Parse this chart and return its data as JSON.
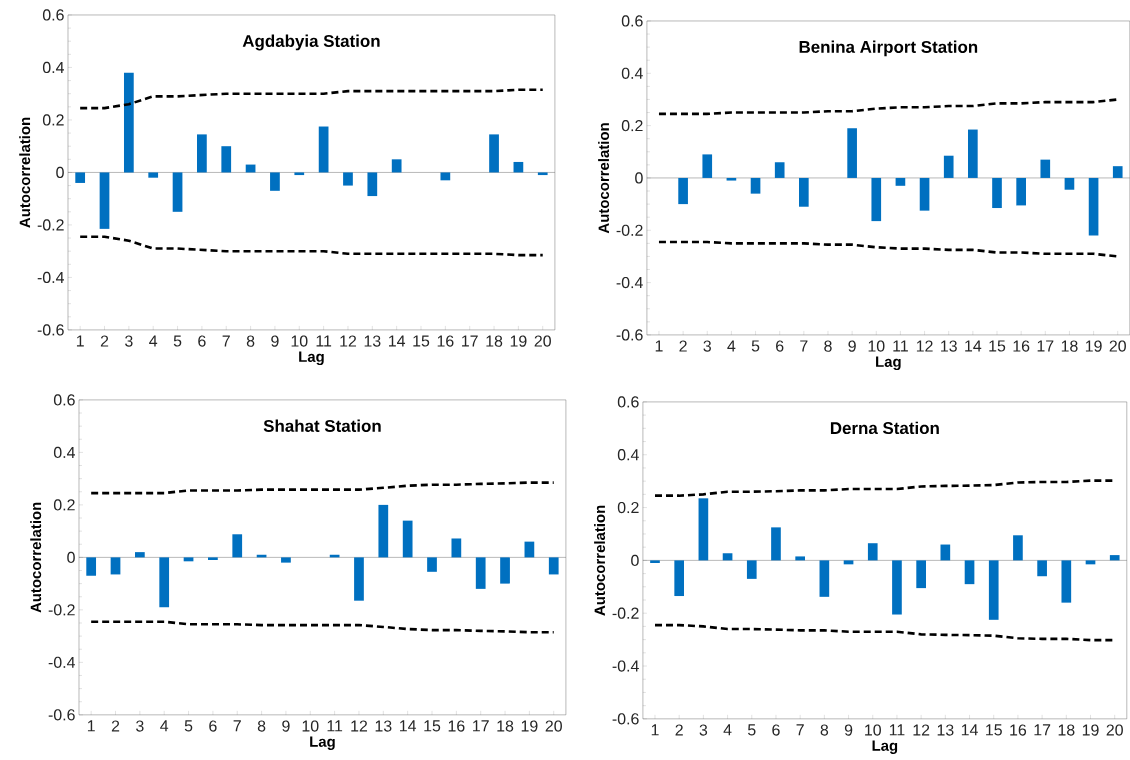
{
  "chart_data": [
    {
      "type": "bar",
      "title": "Agdabyia Station",
      "xlabel": "Lag",
      "ylabel": "Autocorrelation",
      "categories": [
        "1",
        "2",
        "3",
        "4",
        "5",
        "6",
        "7",
        "8",
        "9",
        "10",
        "11",
        "12",
        "13",
        "14",
        "15",
        "16",
        "17",
        "18",
        "19",
        "20"
      ],
      "ylim": [
        -0.6,
        0.6
      ],
      "yticks": [
        -0.6,
        -0.4,
        -0.2,
        0,
        0.2,
        0.4,
        0.6
      ],
      "marker": "none",
      "series": [
        {
          "color": "#0070c0",
          "values": [
            -0.04,
            -0.215,
            0.38,
            -0.02,
            -0.15,
            0.145,
            0.1,
            0.03,
            -0.07,
            -0.01,
            0.175,
            -0.05,
            -0.09,
            0.05,
            0,
            -0.03,
            0,
            0.145,
            0.04,
            -0.01
          ]
        },
        {
          "type": "line",
          "color": "#000000",
          "line_style": "dashed",
          "values": [
            0.245,
            0.245,
            0.26,
            0.29,
            0.29,
            0.295,
            0.3,
            0.3,
            0.3,
            0.3,
            0.3,
            0.31,
            0.31,
            0.31,
            0.31,
            0.31,
            0.31,
            0.31,
            0.315,
            0.315
          ]
        },
        {
          "type": "line",
          "color": "#000000",
          "line_style": "dashed",
          "values": [
            -0.245,
            -0.245,
            -0.26,
            -0.29,
            -0.29,
            -0.295,
            -0.3,
            -0.3,
            -0.3,
            -0.3,
            -0.3,
            -0.31,
            -0.31,
            -0.31,
            -0.31,
            -0.31,
            -0.31,
            -0.31,
            -0.315,
            -0.315
          ]
        }
      ]
    },
    {
      "type": "bar",
      "title": "Benina Airport Station",
      "xlabel": "Lag",
      "ylabel": "Autocorrelation",
      "categories": [
        "1",
        "2",
        "3",
        "4",
        "5",
        "6",
        "7",
        "8",
        "9",
        "10",
        "11",
        "12",
        "13",
        "14",
        "15",
        "16",
        "17",
        "18",
        "19",
        "20"
      ],
      "ylim": [
        -0.6,
        0.6
      ],
      "yticks": [
        -0.6,
        -0.4,
        -0.2,
        0,
        0.2,
        0.4,
        0.6
      ],
      "marker": "none",
      "series": [
        {
          "color": "#0070c0",
          "values": [
            0,
            -0.1,
            0.09,
            -0.01,
            -0.06,
            0.06,
            -0.11,
            0,
            0.19,
            -0.165,
            -0.03,
            -0.125,
            0.085,
            0.185,
            -0.115,
            -0.105,
            0.07,
            -0.045,
            -0.22,
            0.045
          ]
        },
        {
          "type": "line",
          "color": "#000000",
          "line_style": "dashed",
          "values": [
            0.245,
            0.245,
            0.245,
            0.25,
            0.25,
            0.25,
            0.25,
            0.255,
            0.255,
            0.265,
            0.27,
            0.27,
            0.275,
            0.275,
            0.285,
            0.285,
            0.29,
            0.29,
            0.29,
            0.3
          ]
        },
        {
          "type": "line",
          "color": "#000000",
          "line_style": "dashed",
          "values": [
            -0.245,
            -0.245,
            -0.245,
            -0.25,
            -0.25,
            -0.25,
            -0.25,
            -0.255,
            -0.255,
            -0.265,
            -0.27,
            -0.27,
            -0.275,
            -0.275,
            -0.285,
            -0.285,
            -0.29,
            -0.29,
            -0.29,
            -0.3
          ]
        }
      ]
    },
    {
      "type": "bar",
      "title": "Shahat Station",
      "xlabel": "Lag",
      "ylabel": "Autocorrelation",
      "categories": [
        "1",
        "2",
        "3",
        "4",
        "5",
        "6",
        "7",
        "8",
        "9",
        "10",
        "11",
        "12",
        "13",
        "14",
        "15",
        "16",
        "17",
        "18",
        "19",
        "20"
      ],
      "ylim": [
        -0.6,
        0.6
      ],
      "yticks": [
        -0.6,
        -0.4,
        -0.2,
        0,
        0.2,
        0.4,
        0.6
      ],
      "marker": "none",
      "series": [
        {
          "color": "#0070c0",
          "values": [
            -0.07,
            -0.065,
            0.02,
            -0.19,
            -0.015,
            -0.01,
            0.088,
            0.01,
            -0.02,
            0,
            0.01,
            -0.165,
            0.2,
            0.14,
            -0.055,
            0.072,
            -0.12,
            -0.1,
            0.06,
            -0.065
          ]
        },
        {
          "type": "line",
          "color": "#000000",
          "line_style": "dashed",
          "values": [
            0.245,
            0.245,
            0.245,
            0.245,
            0.255,
            0.255,
            0.255,
            0.258,
            0.258,
            0.258,
            0.258,
            0.258,
            0.265,
            0.273,
            0.277,
            0.277,
            0.28,
            0.282,
            0.285,
            0.285
          ]
        },
        {
          "type": "line",
          "color": "#000000",
          "line_style": "dashed",
          "values": [
            -0.245,
            -0.245,
            -0.245,
            -0.245,
            -0.255,
            -0.255,
            -0.255,
            -0.258,
            -0.258,
            -0.258,
            -0.258,
            -0.258,
            -0.265,
            -0.273,
            -0.277,
            -0.277,
            -0.28,
            -0.282,
            -0.285,
            -0.285
          ]
        }
      ]
    },
    {
      "type": "bar",
      "title": "Derna Station",
      "xlabel": "Lag",
      "ylabel": "Autocorrelation",
      "categories": [
        "1",
        "2",
        "3",
        "4",
        "5",
        "6",
        "7",
        "8",
        "9",
        "10",
        "11",
        "12",
        "13",
        "14",
        "15",
        "16",
        "17",
        "18",
        "19",
        "20"
      ],
      "ylim": [
        -0.6,
        0.6
      ],
      "yticks": [
        -0.6,
        -0.4,
        -0.2,
        0,
        0.2,
        0.4,
        0.6
      ],
      "marker": "none",
      "series": [
        {
          "color": "#0070c0",
          "values": [
            -0.01,
            -0.135,
            0.235,
            0.027,
            -0.07,
            0.125,
            0.015,
            -0.138,
            -0.015,
            0.065,
            -0.205,
            -0.105,
            0.06,
            -0.09,
            -0.225,
            0.095,
            -0.06,
            -0.16,
            -0.015,
            0.02
          ]
        },
        {
          "type": "line",
          "color": "#000000",
          "line_style": "dashed",
          "values": [
            0.245,
            0.245,
            0.25,
            0.26,
            0.26,
            0.262,
            0.265,
            0.265,
            0.27,
            0.27,
            0.27,
            0.28,
            0.282,
            0.283,
            0.285,
            0.295,
            0.297,
            0.297,
            0.302,
            0.302
          ]
        },
        {
          "type": "line",
          "color": "#000000",
          "line_style": "dashed",
          "values": [
            -0.245,
            -0.245,
            -0.25,
            -0.26,
            -0.26,
            -0.262,
            -0.265,
            -0.265,
            -0.27,
            -0.27,
            -0.27,
            -0.28,
            -0.282,
            -0.283,
            -0.285,
            -0.295,
            -0.297,
            -0.297,
            -0.302,
            -0.302
          ]
        }
      ]
    }
  ]
}
